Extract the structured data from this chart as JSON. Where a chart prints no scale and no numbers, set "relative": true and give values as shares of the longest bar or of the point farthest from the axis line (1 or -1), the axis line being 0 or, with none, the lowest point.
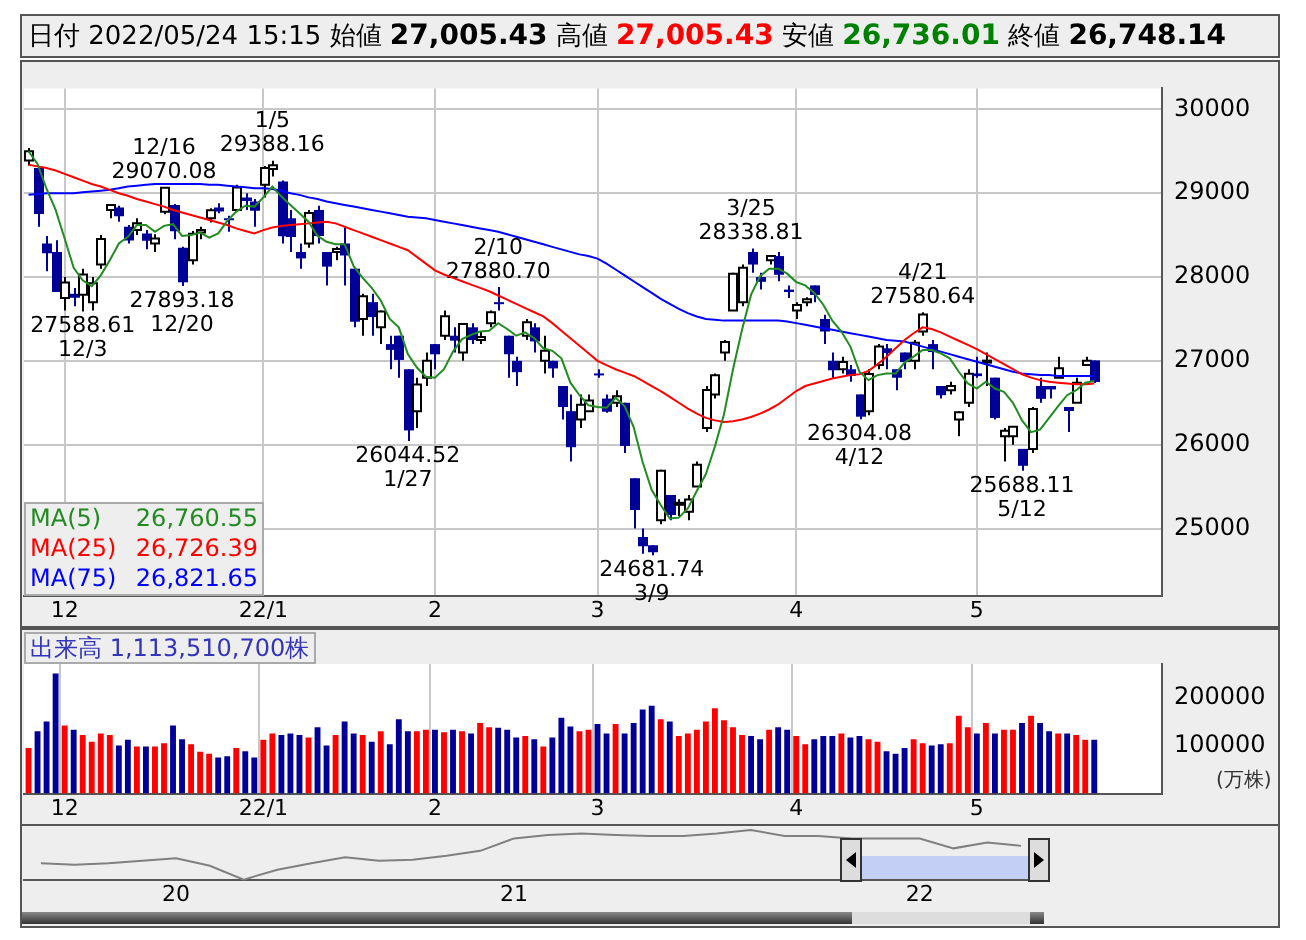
{
  "chart_data": [
    {
      "type": "candlestick",
      "title": "日付 2022/05/24 15:15",
      "annotations": [
        "始値 27,005.43",
        "高値 27,005.43",
        "安値 26,736.01",
        "終値 26,748.14",
        "26,760.55",
        "26,726.39",
        "26,821.65",
        {
          "text": "12/16 29070.08",
          "y": 29070.08
        },
        {
          "text": "1/5 29388.16",
          "y": 29388.16
        },
        {
          "text": "27588.61 12/3",
          "y": 27588.61
        },
        {
          "text": "27893.18 12/20",
          "y": 27893.18
        },
        {
          "text": "2/10 27880.70",
          "y": 27880.7
        },
        {
          "text": "26044.52 1/27",
          "y": 26044.52
        },
        {
          "text": "24681.74 3/9",
          "y": 24681.74
        },
        {
          "text": "3/25 28338.81",
          "y": 28338.81
        },
        {
          "text": "4/21 27580.64",
          "y": 27580.64
        },
        {
          "text": "26304.08 4/12",
          "y": 26304.08
        },
        {
          "text": "25688.11 5/12",
          "y": 25688.11
        }
      ],
      "categories": [
        null,
        null,
        null,
        null,
        "12",
        null,
        null,
        null,
        null,
        null,
        null,
        null,
        null,
        null,
        null,
        null,
        null,
        null,
        null,
        null,
        null,
        null,
        null,
        null,
        null,
        null,
        "22/1",
        null,
        null,
        null,
        null,
        null,
        null,
        null,
        null,
        null,
        null,
        null,
        null,
        null,
        null,
        null,
        null,
        null,
        null,
        "2",
        null,
        null,
        null,
        null,
        null,
        null,
        null,
        null,
        null,
        null,
        null,
        null,
        null,
        null,
        null,
        null,
        null,
        "3",
        null,
        null,
        null,
        null,
        null,
        null,
        null,
        null,
        null,
        null,
        null,
        null,
        null,
        null,
        null,
        null,
        null,
        null,
        null,
        null,
        null,
        "4",
        null,
        null,
        null,
        null,
        null,
        null,
        null,
        null,
        null,
        null,
        null,
        null,
        null,
        null,
        null,
        null,
        null,
        null,
        null,
        "5",
        null,
        null,
        null,
        null,
        null,
        null,
        null,
        null,
        null,
        null,
        null,
        null,
        null
      ],
      "ylim": [
        24200,
        30250
      ],
      "yticks": [
        25000,
        26000,
        27000,
        28000,
        29000,
        30000
      ],
      "grid": true,
      "legend": "bottom left",
      "series": [
        {
          "type": "candlestick",
          "color": "#000099",
          "colors": [
            "#ffffff",
            "#000099",
            "#000099",
            "#000099",
            "#ffffff",
            "#000099",
            "#ffffff",
            "#ffffff",
            "#ffffff",
            "#ffffff",
            "#000099",
            "#000099",
            "#ffffff",
            "#000099",
            "#ffffff",
            "#ffffff",
            "#000099",
            "#000099",
            "#ffffff",
            "#ffffff",
            "#ffffff",
            "#000099",
            "#000099",
            "#ffffff",
            "#000099",
            "#000099",
            "#ffffff",
            "#ffffff",
            "#000099",
            "#000099",
            "#000099",
            "#ffffff",
            "#000099",
            "#000099",
            "#ffffff",
            "#000099",
            "#000099",
            "#ffffff",
            "#000099",
            "#ffffff",
            "#000099",
            "#000099",
            "#000099",
            "#ffffff",
            "#ffffff",
            "#000099",
            "#ffffff",
            "#000099",
            "#ffffff",
            "#000099",
            "#ffffff",
            "#ffffff",
            "#000099",
            "#000099",
            "#000099",
            "#ffffff",
            "#000099",
            "#ffffff",
            "#000099",
            "#000099",
            "#000099",
            "#ffffff",
            "#ffffff",
            "#000099",
            "#000099",
            "#ffffff",
            "#000099",
            "#000099",
            "#000099",
            "#000099",
            "#ffffff",
            "#000099",
            "#ffffff",
            "#ffffff",
            "#ffffff",
            "#ffffff",
            "#ffffff",
            "#ffffff",
            "#ffffff",
            "#ffffff",
            "#000099",
            "#000099",
            "#ffffff",
            "#000099",
            "#000099",
            "#ffffff",
            "#ffffff",
            "#000099",
            "#000099",
            "#000099",
            "#ffffff",
            "#000099",
            "#000099",
            "#ffffff",
            "#ffffff",
            "#000099",
            "#000099",
            "#000099",
            "#ffffff",
            "#ffffff",
            "#000099",
            "#000099",
            "#ffffff",
            "#ffffff",
            "#ffffff",
            "#000099",
            "#ffffff",
            "#000099",
            "#ffffff",
            "#ffffff",
            "#000099",
            "#ffffff",
            "#000099",
            "#000099",
            "#ffffff",
            "#000099",
            "#ffffff",
            "#ffffff",
            "#000099"
          ],
          "ohlc": [
            [
              29390,
              29540,
              29330,
              29499
            ],
            [
              29300,
              29300,
              28600,
              28751
            ],
            [
              28400,
              28490,
              28070,
              28283
            ],
            [
              28300,
              28440,
              27820,
              27821
            ],
            [
              27750,
              28000,
              27600,
              27935
            ],
            [
              27800,
              27870,
              27650,
              27753
            ],
            [
              27790,
              28100,
              27588.61,
              28029
            ],
            [
              27700,
              28000,
              27600,
              27927
            ],
            [
              28150,
              28500,
              28100,
              28455
            ],
            [
              28800,
              28870,
              28700,
              28860
            ],
            [
              28830,
              28850,
              28660,
              28725
            ],
            [
              28600,
              28620,
              28400,
              28437
            ],
            [
              28560,
              28700,
              28500,
              28640
            ],
            [
              28520,
              28560,
              28330,
              28432
            ],
            [
              28400,
              28510,
              28300,
              28459
            ],
            [
              28780,
              29070.08,
              28750,
              29066
            ],
            [
              28860,
              28870,
              28450,
              28545
            ],
            [
              28350,
              28360,
              27893.18,
              27937
            ],
            [
              28200,
              28550,
              28150,
              28517
            ],
            [
              28530,
              28600,
              28450,
              28562
            ],
            [
              28700,
              28820,
              28650,
              28798
            ],
            [
              28830,
              28880,
              28760,
              28782
            ],
            [
              28700,
              28730,
              28540,
              28676
            ],
            [
              28800,
              29100,
              28800,
              29069
            ],
            [
              28950,
              29000,
              28800,
              28906
            ],
            [
              28900,
              28930,
              28600,
              28791
            ],
            [
              29100,
              29323,
              28950,
              29301
            ],
            [
              29290,
              29388.16,
              29200,
              29332
            ],
            [
              29140,
              29150,
              28400,
              28487
            ],
            [
              28700,
              28800,
              28300,
              28478
            ],
            [
              28300,
              28400,
              28100,
              28222
            ],
            [
              28400,
              28800,
              28350,
              28765
            ],
            [
              28800,
              28850,
              28400,
              28489
            ],
            [
              28300,
              28300,
              27900,
              28124
            ],
            [
              28300,
              28360,
              28200,
              28333
            ],
            [
              28400,
              28600,
              27900,
              28257
            ],
            [
              28100,
              28100,
              27400,
              27467
            ],
            [
              27500,
              27800,
              27300,
              27772
            ],
            [
              27700,
              27800,
              27300,
              27522
            ],
            [
              27400,
              27600,
              27200,
              27588
            ],
            [
              27200,
              27300,
              26900,
              27131
            ],
            [
              27300,
              27300,
              26800,
              27011
            ],
            [
              26900,
              26900,
              26044.52,
              26170
            ],
            [
              26400,
              26800,
              26200,
              26717
            ],
            [
              26800,
              27100,
              26700,
              27001
            ],
            [
              27200,
              27200,
              26900,
              27078
            ],
            [
              27300,
              27600,
              27250,
              27533
            ],
            [
              27300,
              27400,
              27100,
              27241
            ],
            [
              27100,
              27450,
              27000,
              27439
            ],
            [
              27400,
              27450,
              27200,
              27248
            ],
            [
              27250,
              27350,
              27200,
              27284
            ],
            [
              27450,
              27600,
              27400,
              27579
            ],
            [
              27700,
              27880.7,
              27600,
              27696
            ],
            [
              27300,
              27300,
              26800,
              27079
            ],
            [
              27000,
              27050,
              26700,
              26865
            ],
            [
              27300,
              27500,
              27250,
              27460
            ],
            [
              27400,
              27450,
              27100,
              27232
            ],
            [
              27000,
              27300,
              26850,
              27122
            ],
            [
              27000,
              27000,
              26800,
              26910
            ],
            [
              26700,
              26700,
              26300,
              26449
            ],
            [
              26400,
              26600,
              25800,
              25970
            ],
            [
              26300,
              26600,
              26200,
              26476
            ],
            [
              26400,
              26600,
              26400,
              26526
            ],
            [
              26850,
              26900,
              26800,
              26844
            ],
            [
              26550,
              26600,
              26380,
              26393
            ],
            [
              26500,
              26650,
              26450,
              26577
            ],
            [
              26500,
              26500,
              25900,
              25985
            ],
            [
              25600,
              25600,
              25000,
              25221
            ],
            [
              24900,
              25000,
              24700,
              24790
            ],
            [
              24800,
              24800,
              24681.74,
              24717
            ],
            [
              25100,
              25700,
              25050,
              25690
            ],
            [
              25400,
              25400,
              25100,
              25162
            ],
            [
              25300,
              25350,
              25150,
              25307
            ],
            [
              25200,
              25400,
              25100,
              25346
            ],
            [
              25500,
              25800,
              25500,
              25762
            ],
            [
              26200,
              26700,
              26150,
              26652
            ],
            [
              26600,
              26850,
              26550,
              26827
            ],
            [
              27100,
              27250,
              27000,
              27224
            ],
            [
              27600,
              28050,
              27600,
              28040
            ],
            [
              27700,
              28150,
              27650,
              28110
            ],
            [
              28300,
              28338.81,
              28050,
              28149
            ],
            [
              28000,
              28050,
              27850,
              27943
            ],
            [
              28200,
              28260,
              28150,
              28252
            ],
            [
              28250,
              28300,
              27950,
              28027
            ],
            [
              27850,
              27900,
              27750,
              27821
            ],
            [
              27600,
              27700,
              27500,
              27665
            ],
            [
              27700,
              27760,
              27650,
              27736
            ],
            [
              27900,
              27900,
              27700,
              27787
            ],
            [
              27500,
              27550,
              27200,
              27350
            ],
            [
              27000,
              27100,
              26800,
              26888
            ],
            [
              26900,
              27050,
              26850,
              26985
            ],
            [
              26900,
              26950,
              26750,
              26821
            ],
            [
              26600,
              26600,
              26304.08,
              26334
            ],
            [
              26400,
              26900,
              26350,
              26843
            ],
            [
              26950,
              27200,
              26900,
              27172
            ],
            [
              27150,
              27200,
              26900,
              27093
            ],
            [
              26900,
              26900,
              26650,
              26799
            ],
            [
              27100,
              27100,
              26900,
              26985
            ],
            [
              27000,
              27250,
              26900,
              27217
            ],
            [
              27350,
              27580.64,
              27300,
              27553
            ],
            [
              27200,
              27250,
              26900,
              27105
            ],
            [
              26700,
              26700,
              26550,
              26590
            ],
            [
              26650,
              26750,
              26600,
              26700
            ],
            [
              26300,
              26400,
              26100,
              26386
            ],
            [
              26500,
              26900,
              26450,
              26847
            ],
            [
              26850,
              27050,
              26800,
              26818
            ],
            [
              27000,
              27100,
              26700,
              27003
            ],
            [
              26800,
              26800,
              26300,
              26319
            ],
            [
              26100,
              26200,
              25800,
              26167
            ],
            [
              26100,
              26220,
              26000,
              26213
            ],
            [
              25950,
              25950,
              25688.11,
              25748
            ],
            [
              25950,
              26450,
              25900,
              26427
            ],
            [
              26700,
              26800,
              26500,
              26547
            ],
            [
              26700,
              26700,
              26550,
              26659
            ],
            [
              26800,
              27050,
              26800,
              26911
            ],
            [
              26450,
              26450,
              26150,
              26402
            ],
            [
              26500,
              26800,
              26500,
              26739
            ],
            [
              26950,
              27050,
              26950,
              27001
            ],
            [
              27005.43,
              27005.43,
              26736.01,
              26748.14
            ]
          ]
        },
        {
          "type": "line",
          "name": "MA(5)",
          "color": "#228b22",
          "values": [
            29500,
            29350,
            29050,
            28800,
            28460,
            28110,
            27960,
            27890,
            28020,
            28200,
            28400,
            28480,
            28620,
            28620,
            28540,
            28610,
            28630,
            28490,
            28500,
            28530,
            28470,
            28520,
            28670,
            28780,
            28850,
            28840,
            28950,
            29080,
            28960,
            28860,
            28760,
            28660,
            28490,
            28420,
            28390,
            28390,
            28130,
            27990,
            27870,
            27720,
            27500,
            27400,
            27080,
            26920,
            26810,
            26800,
            26900,
            27110,
            27260,
            27310,
            27350,
            27360,
            27450,
            27380,
            27300,
            27340,
            27270,
            27150,
            27120,
            27030,
            26740,
            26590,
            26470,
            26450,
            26440,
            26560,
            26460,
            26210,
            25790,
            25460,
            25280,
            25120,
            25130,
            25240,
            25450,
            25650,
            25980,
            26360,
            26900,
            27370,
            27790,
            28010,
            28100,
            28100,
            28040,
            27940,
            27900,
            27810,
            27670,
            27480,
            27350,
            27170,
            26870,
            26770,
            26830,
            26850,
            26850,
            26980,
            27050,
            27130,
            27130,
            27090,
            27030,
            26870,
            26730,
            26670,
            26750,
            26670,
            26630,
            26500,
            26290,
            26150,
            26180,
            26320,
            26460,
            26590,
            26650,
            26740,
            26760
          ]
        },
        {
          "type": "line",
          "name": "MA(25)",
          "color": "#ff0000",
          "values": [
            29340,
            29320,
            29300,
            29270,
            29230,
            29190,
            29150,
            29110,
            29080,
            29040,
            29000,
            28970,
            28930,
            28900,
            28870,
            28840,
            28800,
            28770,
            28740,
            28710,
            28680,
            28650,
            28620,
            28580,
            28550,
            28520,
            28560,
            28590,
            28610,
            28620,
            28630,
            28640,
            28650,
            28660,
            28640,
            28600,
            28560,
            28520,
            28480,
            28440,
            28400,
            28360,
            28320,
            28240,
            28160,
            28080,
            28030,
            27990,
            27950,
            27910,
            27870,
            27830,
            27780,
            27730,
            27680,
            27630,
            27580,
            27530,
            27450,
            27360,
            27270,
            27180,
            27090,
            27000,
            26950,
            26900,
            26860,
            26820,
            26760,
            26700,
            26640,
            26570,
            26500,
            26430,
            26370,
            26320,
            26290,
            26270,
            26280,
            26300,
            26330,
            26370,
            26420,
            26480,
            26560,
            26640,
            26700,
            26730,
            26760,
            26790,
            26810,
            26830,
            26840,
            26880,
            26960,
            27050,
            27150,
            27250,
            27330,
            27400,
            27380,
            27340,
            27290,
            27240,
            27190,
            27140,
            27080,
            27020,
            26960,
            26900,
            26840,
            26800,
            26770,
            26750,
            26740,
            26730,
            26720,
            26720,
            26730
          ]
        },
        {
          "type": "line",
          "name": "MA(75)",
          "color": "#0000ff",
          "values": [
            28980,
            28990,
            29000,
            29000,
            29000,
            29000,
            29010,
            29020,
            29030,
            29040,
            29060,
            29080,
            29090,
            29100,
            29110,
            29110,
            29110,
            29110,
            29110,
            29110,
            29100,
            29100,
            29090,
            29080,
            29070,
            29060,
            29060,
            29050,
            29030,
            29000,
            28980,
            28950,
            28930,
            28900,
            28880,
            28860,
            28840,
            28820,
            28800,
            28780,
            28760,
            28740,
            28720,
            28710,
            28700,
            28680,
            28660,
            28640,
            28620,
            28600,
            28580,
            28560,
            28540,
            28510,
            28480,
            28450,
            28420,
            28390,
            28360,
            28330,
            28300,
            28270,
            28250,
            28220,
            28160,
            28090,
            28020,
            27950,
            27880,
            27810,
            27740,
            27680,
            27620,
            27570,
            27530,
            27500,
            27490,
            27480,
            27480,
            27480,
            27480,
            27480,
            27480,
            27480,
            27470,
            27450,
            27430,
            27410,
            27390,
            27370,
            27350,
            27330,
            27310,
            27290,
            27270,
            27250,
            27240,
            27230,
            27200,
            27170,
            27140,
            27110,
            27080,
            27050,
            27020,
            26990,
            26960,
            26930,
            26900,
            26870,
            26850,
            26840,
            26830,
            26830,
            26820,
            26820,
            26820,
            26820,
            26820
          ]
        }
      ]
    },
    {
      "type": "bar",
      "title": "出来高 1,113,510,700株",
      "ylabel": "(万株)",
      "grid": "x",
      "ylim": [
        0,
        270000
      ],
      "yticks": [
        100000,
        200000
      ],
      "categories": [
        null,
        null,
        null,
        null,
        "12",
        null,
        null,
        null,
        null,
        null,
        null,
        null,
        null,
        null,
        null,
        null,
        null,
        null,
        null,
        null,
        null,
        null,
        null,
        null,
        null,
        null,
        "22/1",
        null,
        null,
        null,
        null,
        null,
        null,
        null,
        null,
        null,
        null,
        null,
        null,
        null,
        null,
        null,
        null,
        null,
        null,
        "2",
        null,
        null,
        null,
        null,
        null,
        null,
        null,
        null,
        null,
        null,
        null,
        null,
        null,
        null,
        null,
        null,
        null,
        "3",
        null,
        null,
        null,
        null,
        null,
        null,
        null,
        null,
        null,
        null,
        null,
        null,
        null,
        null,
        null,
        null,
        null,
        null,
        null,
        null,
        null,
        "4",
        null,
        null,
        null,
        null,
        null,
        null,
        null,
        null,
        null,
        null,
        null,
        null,
        null,
        null,
        null,
        null,
        null,
        null,
        null,
        "5",
        null,
        null,
        null,
        null,
        null,
        null,
        null,
        null,
        null,
        null,
        null,
        null,
        null
      ],
      "values": [
        95000,
        130000,
        150000,
        250000,
        142000,
        133000,
        122000,
        108000,
        125000,
        122000,
        100000,
        112000,
        98000,
        98000,
        98000,
        105000,
        142000,
        113000,
        103000,
        87000,
        83000,
        75000,
        78000,
        95000,
        88000,
        75000,
        112000,
        125000,
        122000,
        125000,
        122000,
        117000,
        138000,
        100000,
        122000,
        150000,
        125000,
        122000,
        108000,
        130000,
        103000,
        155000,
        130000,
        130000,
        133000,
        133000,
        128000,
        133000,
        130000,
        125000,
        147000,
        138000,
        137000,
        133000,
        117000,
        120000,
        113000,
        98000,
        117000,
        158000,
        140000,
        130000,
        133000,
        145000,
        125000,
        145000,
        125000,
        147000,
        175000,
        183000,
        155000,
        150000,
        120000,
        125000,
        133000,
        150000,
        178000,
        153000,
        138000,
        122000,
        120000,
        113000,
        133000,
        138000,
        133000,
        120000,
        103000,
        113000,
        120000,
        120000,
        125000,
        117000,
        120000,
        113000,
        108000,
        88000,
        83000,
        95000,
        113000,
        105000,
        100000,
        103000,
        105000,
        162000,
        138000,
        125000,
        147000,
        125000,
        133000,
        133000,
        147000,
        162000,
        147000,
        130000,
        125000,
        125000,
        122000,
        112000,
        112000
      ],
      "colors": [
        "#ff0000",
        "#000099",
        "#000099",
        "#000099",
        "#ff0000",
        "#000099",
        "#ff0000",
        "#ff0000",
        "#ff0000",
        "#ff0000",
        "#000099",
        "#000099",
        "#ff0000",
        "#000099",
        "#ff0000",
        "#ff0000",
        "#000099",
        "#000099",
        "#ff0000",
        "#ff0000",
        "#ff0000",
        "#000099",
        "#000099",
        "#ff0000",
        "#000099",
        "#000099",
        "#ff0000",
        "#ff0000",
        "#000099",
        "#000099",
        "#000099",
        "#ff0000",
        "#000099",
        "#000099",
        "#ff0000",
        "#000099",
        "#000099",
        "#ff0000",
        "#000099",
        "#ff0000",
        "#000099",
        "#000099",
        "#000099",
        "#ff0000",
        "#ff0000",
        "#000099",
        "#ff0000",
        "#000099",
        "#ff0000",
        "#000099",
        "#ff0000",
        "#ff0000",
        "#000099",
        "#000099",
        "#000099",
        "#ff0000",
        "#000099",
        "#ff0000",
        "#000099",
        "#000099",
        "#000099",
        "#ff0000",
        "#ff0000",
        "#000099",
        "#000099",
        "#ff0000",
        "#000099",
        "#000099",
        "#000099",
        "#000099",
        "#ff0000",
        "#000099",
        "#ff0000",
        "#ff0000",
        "#ff0000",
        "#ff0000",
        "#ff0000",
        "#ff0000",
        "#ff0000",
        "#ff0000",
        "#000099",
        "#000099",
        "#ff0000",
        "#000099",
        "#000099",
        "#ff0000",
        "#ff0000",
        "#000099",
        "#000099",
        "#000099",
        "#ff0000",
        "#000099",
        "#000099",
        "#ff0000",
        "#ff0000",
        "#000099",
        "#000099",
        "#000099",
        "#ff0000",
        "#ff0000",
        "#000099",
        "#000099",
        "#ff0000",
        "#ff0000",
        "#ff0000",
        "#000099",
        "#ff0000",
        "#000099",
        "#ff0000",
        "#ff0000",
        "#000099",
        "#ff0000",
        "#000099",
        "#000099",
        "#ff0000",
        "#000099",
        "#ff0000",
        "#ff0000",
        "#000099"
      ]
    },
    {
      "type": "line",
      "relative": true,
      "color": "#808080",
      "categories": [
        null,
        null,
        null,
        null,
        "20",
        null,
        null,
        null,
        null,
        null,
        null,
        null,
        null,
        null,
        "21",
        null,
        null,
        null,
        null,
        null,
        null,
        null,
        null,
        null,
        null,
        null,
        "22",
        null,
        null,
        null
      ],
      "values": [
        0.33,
        0.3,
        0.33,
        0.38,
        0.43,
        0.28,
        0,
        0.2,
        0.33,
        0.45,
        0.38,
        0.4,
        0.48,
        0.58,
        0.83,
        0.9,
        0.93,
        0.9,
        0.88,
        0.88,
        0.93,
        1,
        0.88,
        0.88,
        0.83,
        0.83,
        0.83,
        0.63,
        0.75,
        0.68
      ]
    }
  ]
}
